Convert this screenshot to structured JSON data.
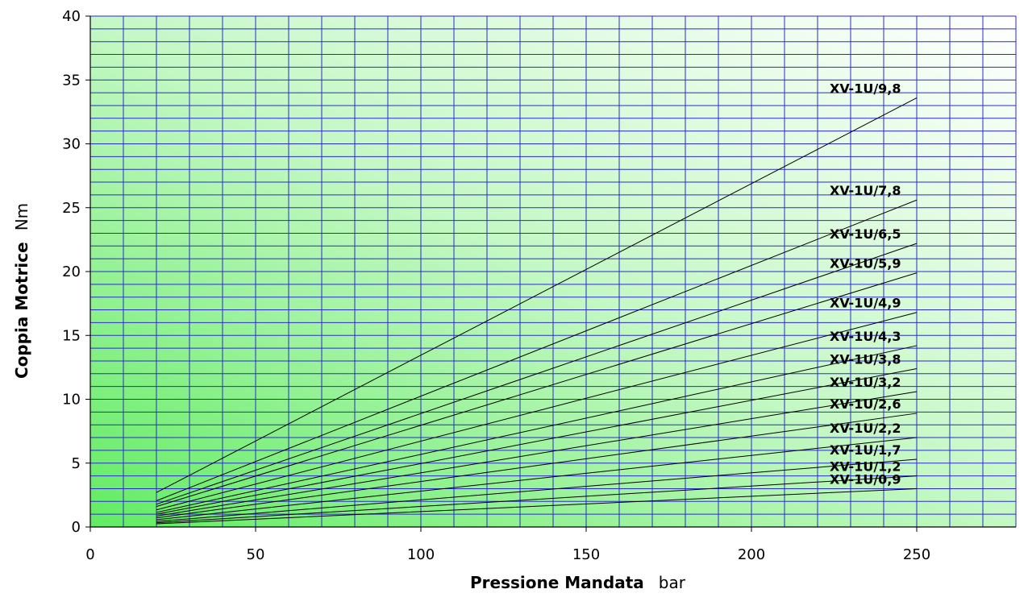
{
  "chart_data": {
    "type": "line",
    "title": "",
    "xlabel": "Pressione Mandata",
    "xunit": "bar",
    "ylabel": "Coppia Motrice",
    "yunit": "Nm",
    "xlim": [
      0,
      280
    ],
    "ylim": [
      0,
      40
    ],
    "x_ticks": [
      0,
      50,
      100,
      150,
      200,
      250
    ],
    "y_ticks": [
      0,
      5,
      10,
      15,
      20,
      25,
      30,
      35,
      40
    ],
    "grid": true,
    "x_minor_step": 10,
    "y_minor_step": 1,
    "colors": {
      "grid": "#2a2acc",
      "line": "#000000",
      "background_left": "#66ee66",
      "background_right": "#ffffff"
    },
    "series": [
      {
        "name": "XV-1U/0,9",
        "x": [
          20,
          250
        ],
        "y": [
          0.25,
          3.0
        ]
      },
      {
        "name": "XV-1U/1,2",
        "x": [
          20,
          250
        ],
        "y": [
          0.33,
          4.0
        ]
      },
      {
        "name": "XV-1U/1,7",
        "x": [
          20,
          250
        ],
        "y": [
          0.43,
          5.3
        ]
      },
      {
        "name": "XV-1U/2,2",
        "x": [
          20,
          250
        ],
        "y": [
          0.57,
          7.0
        ]
      },
      {
        "name": "XV-1U/2,6",
        "x": [
          20,
          250
        ],
        "y": [
          0.71,
          8.9
        ]
      },
      {
        "name": "XV-1U/3,2",
        "x": [
          20,
          250
        ],
        "y": [
          0.85,
          10.6
        ]
      },
      {
        "name": "XV-1U/3,8",
        "x": [
          20,
          250
        ],
        "y": [
          1.0,
          12.4
        ]
      },
      {
        "name": "XV-1U/4,3",
        "x": [
          20,
          250
        ],
        "y": [
          1.14,
          14.2
        ]
      },
      {
        "name": "XV-1U/4,9",
        "x": [
          20,
          250
        ],
        "y": [
          1.34,
          16.8
        ]
      },
      {
        "name": "XV-1U/5,9",
        "x": [
          20,
          250
        ],
        "y": [
          1.6,
          19.9
        ]
      },
      {
        "name": "XV-1U/6,5",
        "x": [
          20,
          250
        ],
        "y": [
          1.78,
          22.2
        ]
      },
      {
        "name": "XV-1U/7,8",
        "x": [
          20,
          250
        ],
        "y": [
          2.05,
          25.6
        ]
      },
      {
        "name": "XV-1U/9,8",
        "x": [
          20,
          250
        ],
        "y": [
          2.7,
          33.6
        ]
      }
    ]
  }
}
